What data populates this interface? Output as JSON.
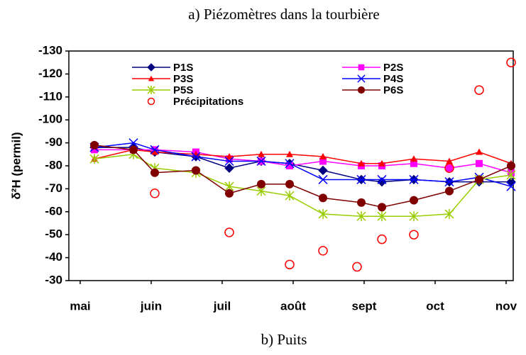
{
  "chart_data": {
    "type": "line",
    "title": "a) Piézomètres dans la tourbière",
    "subtitle": "b) Puits",
    "y_label": "δ²H (permil)",
    "xlim": [
      -0.16,
      6.1
    ],
    "xticks": [
      {
        "value": 0,
        "label": "mai"
      },
      {
        "value": 1,
        "label": "juin"
      },
      {
        "value": 2,
        "label": "juil"
      },
      {
        "value": 3,
        "label": "août"
      },
      {
        "value": 4,
        "label": "sept"
      },
      {
        "value": 5,
        "label": "oct"
      },
      {
        "value": 6,
        "label": "nov"
      }
    ],
    "ylim": [
      -30,
      -130
    ],
    "yticks": [
      -130,
      -120,
      -110,
      -100,
      -90,
      -80,
      -70,
      -60,
      -50,
      -40,
      -30
    ],
    "grid": false,
    "series": [
      {
        "name": "P1S",
        "color": "#000080",
        "marker": "diamond",
        "line": true,
        "x": [
          0.2,
          0.75,
          1.05,
          1.63,
          2.1,
          2.55,
          2.95,
          3.42,
          3.96,
          4.25,
          4.7,
          5.2,
          5.62,
          6.07
        ],
        "values": [
          -88,
          -88,
          -86,
          -84,
          -79,
          -82,
          -81,
          -78,
          -74,
          -73,
          -74,
          -73,
          -73,
          -73
        ]
      },
      {
        "name": "P2S",
        "color": "#ff00ff",
        "marker": "square",
        "line": true,
        "x": [
          0.2,
          0.75,
          1.05,
          1.63,
          2.1,
          2.55,
          2.95,
          3.42,
          3.96,
          4.25,
          4.7,
          5.2,
          5.62,
          6.07
        ],
        "values": [
          -87,
          -87,
          -87,
          -86,
          -83,
          -82,
          -80,
          -82,
          -80,
          -80,
          -81,
          -79,
          -81,
          -77
        ]
      },
      {
        "name": "P3S",
        "color": "#ff0000",
        "marker": "triangle",
        "line": true,
        "x": [
          0.2,
          0.75,
          1.05,
          1.63,
          2.1,
          2.55,
          2.95,
          3.42,
          3.96,
          4.25,
          4.7,
          5.2,
          5.62,
          6.07
        ],
        "values": [
          -83,
          -87,
          -86,
          -85,
          -84,
          -85,
          -85,
          -84,
          -81,
          -81,
          -83,
          -82,
          -86,
          -81
        ]
      },
      {
        "name": "P4S",
        "color": "#0000ff",
        "marker": "x",
        "line": true,
        "x": [
          0.2,
          0.75,
          1.05,
          1.63,
          2.1,
          2.55,
          2.95,
          3.42,
          3.96,
          4.25,
          4.7,
          5.2,
          5.62,
          6.07
        ],
        "values": [
          -88,
          -90,
          -87,
          -84,
          -82,
          -82,
          -81,
          -74,
          -74,
          -74,
          -74,
          -73,
          -75,
          -71
        ]
      },
      {
        "name": "P5S",
        "color": "#99cc00",
        "marker": "asterisk",
        "line": true,
        "x": [
          0.2,
          0.75,
          1.05,
          1.63,
          2.1,
          2.55,
          2.95,
          3.42,
          3.96,
          4.25,
          4.7,
          5.2,
          5.62,
          6.07
        ],
        "values": [
          -83,
          -85,
          -79,
          -77,
          -71,
          -69,
          -67,
          -59,
          -58,
          -58,
          -58,
          -59,
          -74,
          -76
        ]
      },
      {
        "name": "P6S",
        "color": "#800000",
        "marker": "circle",
        "line": true,
        "x": [
          0.2,
          0.75,
          1.05,
          1.63,
          2.1,
          2.55,
          2.95,
          3.42,
          3.96,
          4.25,
          4.7,
          5.2,
          5.62,
          6.07
        ],
        "values": [
          -89,
          -87,
          -77,
          -78,
          -68,
          -72,
          -72,
          -66,
          -64,
          -62,
          -65,
          -69,
          -74,
          -80
        ]
      },
      {
        "name": "Précipitations",
        "color": "#ff0000",
        "marker": "open-circle",
        "line": false,
        "x": [
          1.05,
          2.1,
          2.95,
          3.42,
          3.9,
          4.25,
          4.7,
          5.2,
          5.62,
          6.07
        ],
        "values": [
          -68,
          -51,
          -37,
          -43,
          -36,
          -48,
          -50,
          -79,
          -113,
          -125
        ]
      }
    ]
  }
}
